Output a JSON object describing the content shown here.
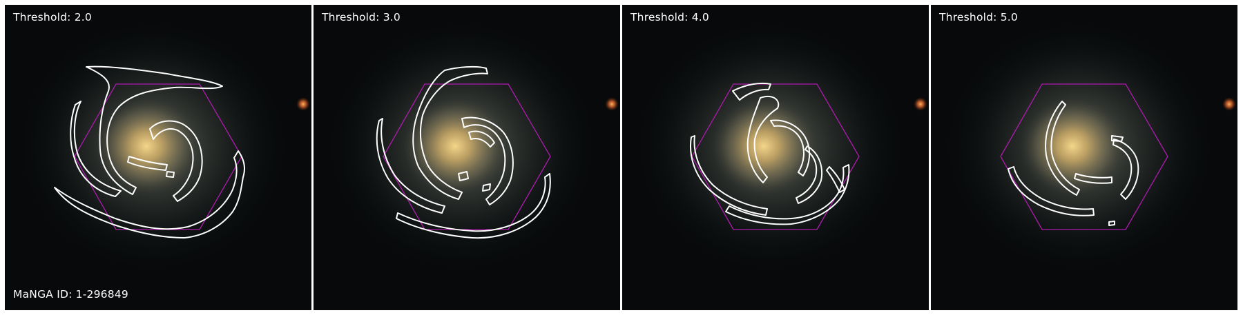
{
  "figure": {
    "id_label": "MaNGA ID: 1-296849",
    "panels": [
      {
        "label": "Threshold: 2.0"
      },
      {
        "label": "Threshold: 3.0"
      },
      {
        "label": "Threshold: 4.0"
      },
      {
        "label": "Threshold: 5.0"
      }
    ],
    "colors": {
      "contour": "#ffffff",
      "footprint_hexagon": "#b01ab0",
      "galaxy_core": "#d9b770",
      "background": "#07090a"
    }
  }
}
